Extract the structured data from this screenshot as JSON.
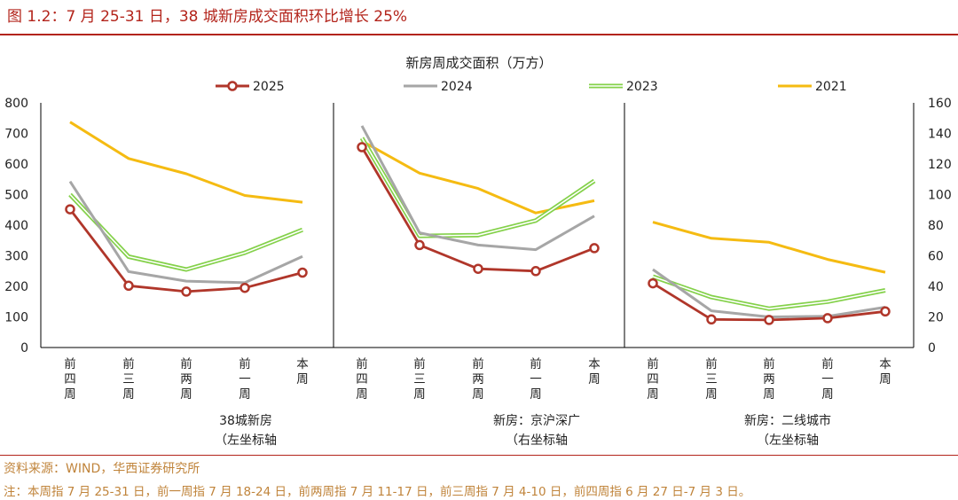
{
  "figure_label": "图 1.2：7 月 25-31 日，38 城新房成交面积环比增长 25%",
  "source": "资料来源：WIND，华西证券研究所",
  "note": "注：本周指 7 月 25-31 日，前一周指 7 月 18-24 日，前两周指 7 月 11-17 日，前三周指 7 月 4-10 日，前四周指 6 月 27 日-7 月 3 日。",
  "colors": {
    "accent": "#b3241b",
    "footer": "#c0843b"
  },
  "chart_data": {
    "type": "line",
    "title": "新房周成交面积（万方）",
    "legend": [
      {
        "name": "2025",
        "color": "#b0362a",
        "marker": "circle"
      },
      {
        "name": "2024",
        "color": "#a6a6a6",
        "marker": "none"
      },
      {
        "name": "2023",
        "color": "#84d14a",
        "marker": "none"
      },
      {
        "name": "2021",
        "color": "#f5bb12",
        "marker": "none"
      }
    ],
    "left_axis": {
      "min": 0,
      "max": 800,
      "ticks": [
        "0",
        "100",
        "200",
        "300",
        "400",
        "500",
        "600",
        "700",
        "800"
      ]
    },
    "right_axis": {
      "min": 0,
      "max": 160,
      "ticks": [
        "0",
        "20",
        "40",
        "60",
        "80",
        "100",
        "120",
        "140",
        "160"
      ]
    },
    "categories": [
      "前四周",
      "前三周",
      "前两周",
      "前一周",
      "本周"
    ],
    "panels": [
      {
        "label": "38城新房",
        "axis_note": "（左坐标轴",
        "axis": "left",
        "series": [
          {
            "name": "2025",
            "values": [
              452,
              202,
              183,
              195,
              245
            ]
          },
          {
            "name": "2024",
            "values": [
              543,
              248,
              217,
              212,
              298
            ]
          },
          {
            "name": "2023",
            "values": [
              500,
              297,
              255,
              310,
              385
            ]
          },
          {
            "name": "2021",
            "values": [
              737,
              618,
              568,
              497,
              475
            ]
          }
        ]
      },
      {
        "label": "新房：京沪深广",
        "axis_note": "（右坐标轴",
        "axis": "right",
        "series": [
          {
            "name": "2025",
            "values": [
              131,
              67,
              51.5,
              50,
              65
            ]
          },
          {
            "name": "2024",
            "values": [
              145,
              75,
              67,
              64,
              86
            ]
          },
          {
            "name": "2023",
            "values": [
              137,
              73,
              73.5,
              83,
              109
            ]
          },
          {
            "name": "2021",
            "values": [
              135,
              114,
              104,
              88,
              96
            ]
          }
        ]
      },
      {
        "label": "新房：二线城市",
        "axis_note": "（左坐标轴",
        "axis": "left",
        "series": [
          {
            "name": "2025",
            "values": [
              210,
              92,
              90,
              96,
              118
            ]
          },
          {
            "name": "2024",
            "values": [
              255,
              120,
              100,
              102,
              132
            ]
          },
          {
            "name": "2023",
            "values": [
              232,
              165,
              127,
              150,
              187
            ]
          },
          {
            "name": "2021",
            "values": [
              410,
              357,
              344,
              288,
              246
            ]
          }
        ]
      }
    ]
  }
}
